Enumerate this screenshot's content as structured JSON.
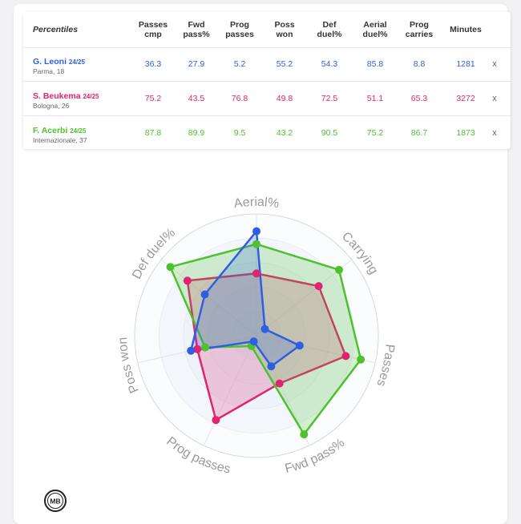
{
  "table": {
    "headers": {
      "player": "Percentiles",
      "passes_cmp": "Passes\ncmp",
      "fwd_pass": "Fwd\npass%",
      "prog_passes": "Prog\npasses",
      "poss_won": "Poss\nwon",
      "def_duel": "Def\nduel%",
      "aerial_duel": "Aerial\nduel%",
      "prog_carries": "Prog\ncarries",
      "minutes": "Minutes"
    },
    "rows": [
      {
        "name": "G. Leoni",
        "season": "24/25",
        "team": "Parma, 18",
        "color": "#2e5fe0",
        "values": [
          "36.3",
          "27.9",
          "5.2",
          "55.2",
          "54.3",
          "85.8",
          "8.8",
          "1281"
        ],
        "remove": "x"
      },
      {
        "name": "S. Beukema",
        "season": "24/25",
        "team": "Bologna, 26",
        "color": "#e0246f",
        "values": [
          "75.2",
          "43.5",
          "76.8",
          "49.8",
          "72.5",
          "51.1",
          "65.3",
          "3272"
        ],
        "remove": "x"
      },
      {
        "name": "F. Acerbi",
        "season": "24/25",
        "team": "Internazionale, 37",
        "color": "#4ec12f",
        "values": [
          "87.8",
          "89.9",
          "9.5",
          "43.2",
          "90.5",
          "75.2",
          "86.7",
          "1873"
        ],
        "remove": "x"
      }
    ]
  },
  "radar": {
    "axes": [
      "Aerial%",
      "Carrying",
      "Passes",
      "Fwd pass%",
      "Prog passes",
      "Poss won",
      "Def duel%"
    ],
    "series": [
      {
        "name": "S. Beukema",
        "color": "#e0246f",
        "values": [
          51.1,
          65.3,
          75.2,
          43.5,
          76.8,
          49.8,
          72.5
        ]
      },
      {
        "name": "F. Acerbi",
        "color": "#4ec12f",
        "values": [
          75.2,
          86.7,
          87.8,
          89.9,
          9.5,
          43.2,
          90.5
        ]
      },
      {
        "name": "G. Leoni",
        "color": "#2e5fe0",
        "values": [
          85.8,
          8.8,
          36.3,
          27.9,
          5.2,
          55.2,
          54.3
        ]
      }
    ]
  },
  "logo": {
    "text": "MB"
  }
}
